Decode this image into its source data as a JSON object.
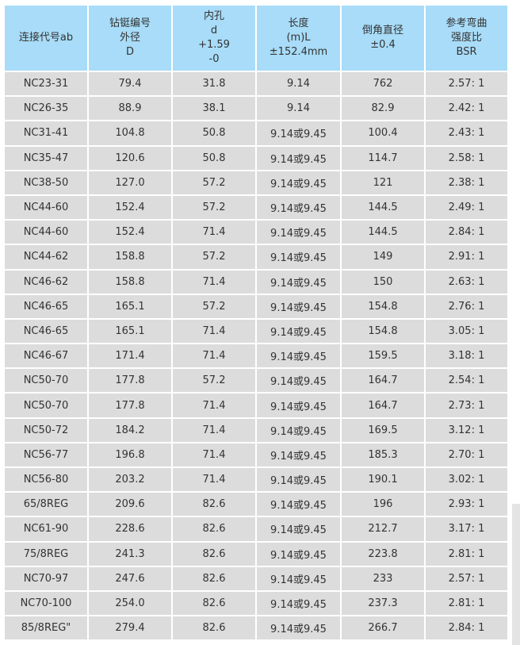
{
  "table": {
    "headers": [
      [
        "连接代号ab"
      ],
      [
        "钻铤编号",
        "外径",
        "D"
      ],
      [
        "内孔",
        "d",
        "+1.59",
        "-0"
      ],
      [
        "长度",
        "(m)L",
        "±152.4mm"
      ],
      [
        "倒角直径",
        "±0.4"
      ],
      [
        "参考弯曲",
        "强度比",
        "BSR"
      ]
    ],
    "rows": [
      [
        "NC23-31",
        "79.4",
        "31.8",
        "9.14",
        "762",
        "2.57: 1"
      ],
      [
        "NC26-35",
        "88.9",
        "38.1",
        "9.14",
        "82.9",
        "2.42: 1"
      ],
      [
        "NC31-41",
        "104.8",
        "50.8",
        "9.14或9.45",
        "100.4",
        "2.43: 1"
      ],
      [
        "NC35-47",
        "120.6",
        "50.8",
        "9.14或9.45",
        "114.7",
        "2.58: 1"
      ],
      [
        "NC38-50",
        "127.0",
        "57.2",
        "9.14或9.45",
        "121",
        "2.38: 1"
      ],
      [
        "NC44-60",
        "152.4",
        "57.2",
        "9.14或9.45",
        "144.5",
        "2.49: 1"
      ],
      [
        "NC44-60",
        "152.4",
        "71.4",
        "9.14或9.45",
        "144.5",
        "2.84: 1"
      ],
      [
        "NC44-62",
        "158.8",
        "57.2",
        "9.14或9.45",
        "149",
        "2.91: 1"
      ],
      [
        "NC46-62",
        "158.8",
        "71.4",
        "9.14或9.45",
        "150",
        "2.63: 1"
      ],
      [
        "NC46-65",
        "165.1",
        "57.2",
        "9.14或9.45",
        "154.8",
        "2.76: 1"
      ],
      [
        "NC46-65",
        "165.1",
        "71.4",
        "9.14或9.45",
        "154.8",
        "3.05: 1"
      ],
      [
        "NC46-67",
        "171.4",
        "71.4",
        "9.14或9.45",
        "159.5",
        "3.18: 1"
      ],
      [
        "NC50-70",
        "177.8",
        "57.2",
        "9.14或9.45",
        "164.7",
        "2.54: 1"
      ],
      [
        "NC50-70",
        "177.8",
        "71.4",
        "9.14或9.45",
        "164.7",
        "2.73: 1"
      ],
      [
        "NC50-72",
        "184.2",
        "71.4",
        "9.14或9.45",
        "169.5",
        "3.12: 1"
      ],
      [
        "NC56-77",
        "196.8",
        "71.4",
        "9.14或9.45",
        "185.3",
        "2.70: 1"
      ],
      [
        "NC56-80",
        "203.2",
        "71.4",
        "9.14或9.45",
        "190.1",
        "3.02: 1"
      ],
      [
        "65/8REG",
        "209.6",
        "82.6",
        "9.14或9.45",
        "196",
        "2.93: 1"
      ],
      [
        "NC61-90",
        "228.6",
        "82.6",
        "9.14或9.45",
        "212.7",
        "3.17: 1"
      ],
      [
        "75/8REG",
        "241.3",
        "82.6",
        "9.14或9.45",
        "223.8",
        "2.81: 1"
      ],
      [
        "NC70-97",
        "247.6",
        "82.6",
        "9.14或9.45",
        "233",
        "2.57: 1"
      ],
      [
        "NC70-100",
        "254.0",
        "82.6",
        "9.14或9.45",
        "237.3",
        "2.81: 1"
      ],
      [
        "85/8REG\"",
        "279.4",
        "82.6",
        "9.14或9.45",
        "266.7",
        "2.84: 1"
      ]
    ]
  },
  "colors": {
    "header_bg": "#a8dcf8",
    "cell_bg": "#dcdcdd"
  }
}
